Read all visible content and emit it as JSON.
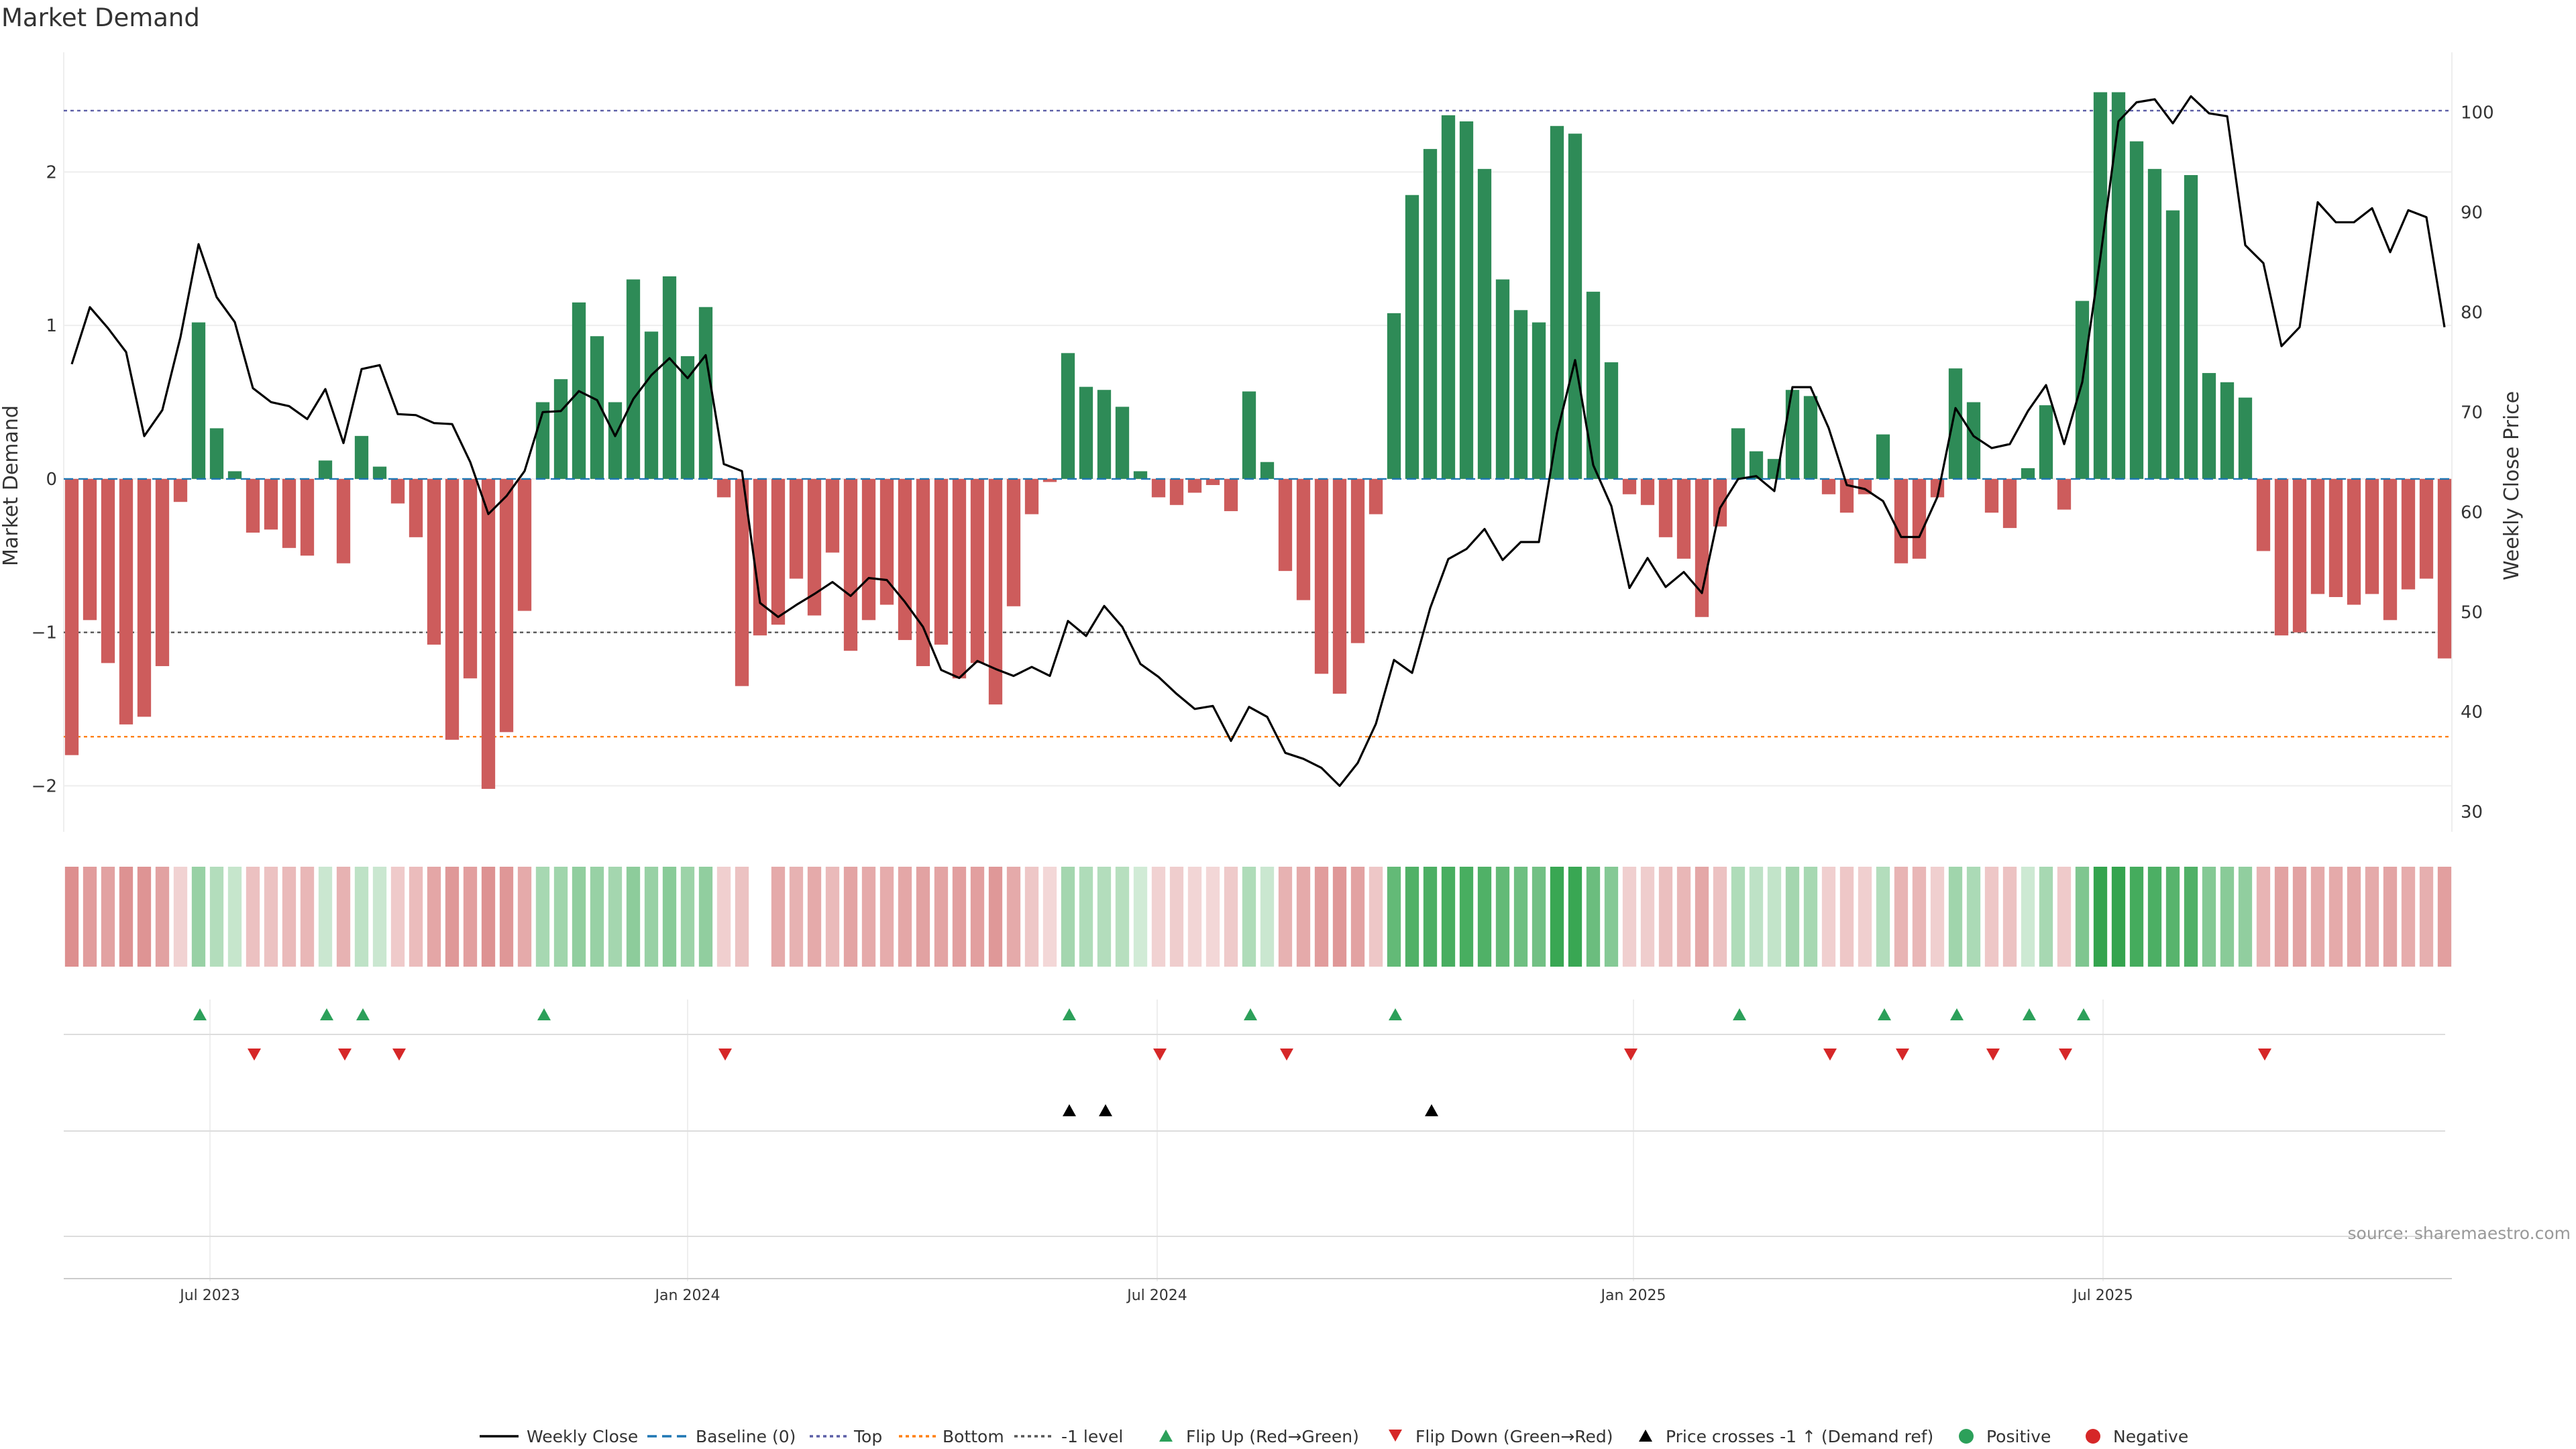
{
  "title": "Market Demand",
  "source": "source: sharemaestro.com",
  "colors": {
    "positive": "#2e8b57",
    "negative": "#cd5c5c",
    "flip_up": "#2ca05a",
    "flip_down": "#d62728",
    "price": "#000000",
    "baseline": "#1f77b4",
    "top": "#5b5ea6",
    "bottom": "#ff7f0e",
    "minus1": "#555555"
  },
  "chart_data": {
    "type": "bar",
    "title": "Market Demand",
    "ylabel": "Market Demand",
    "y2label": "Weekly Close Price",
    "ylim": [
      -2.3,
      2.78
    ],
    "y2lim": [
      28,
      106
    ],
    "yticks": [
      "2",
      "1",
      "0",
      "−1",
      "−2"
    ],
    "y2ticks": [
      "100",
      "90",
      "80",
      "70",
      "60",
      "50",
      "40",
      "30"
    ],
    "xticks": [
      "Jul 2023",
      "Jan 2024",
      "Jul 2024",
      "Jan 2025",
      "Jul 2025"
    ],
    "levels": {
      "top": 2.4,
      "bottom": -1.68,
      "minus1": -1.0,
      "baseline": 0
    },
    "series": [
      {
        "name": "Market Demand",
        "values": [
          -1.8,
          -0.92,
          -1.2,
          -1.6,
          -1.55,
          -1.22,
          -0.15,
          1.02,
          0.33,
          0.05,
          -0.35,
          -0.33,
          -0.45,
          -0.5,
          0.12,
          -0.55,
          0.28,
          0.08,
          -0.16,
          -0.38,
          -1.08,
          -1.7,
          -1.3,
          -2.02,
          -1.65,
          -0.86,
          0.5,
          0.65,
          1.15,
          0.93,
          0.5,
          1.3,
          0.96,
          1.32,
          0.8,
          1.12,
          -0.12,
          -1.35,
          -1.02,
          -0.95,
          -0.65,
          -0.89,
          -0.48,
          -1.12,
          -0.92,
          -0.82,
          -1.05,
          -1.22,
          -1.08,
          -1.3,
          -1.2,
          -1.47,
          -0.83,
          -0.23,
          -0.02,
          0.82,
          0.6,
          0.58,
          0.47,
          0.05,
          -0.12,
          -0.17,
          -0.09,
          -0.04,
          -0.21,
          0.57,
          0.11,
          -0.6,
          -0.79,
          -1.27,
          -1.4,
          -1.07,
          -0.23,
          1.08,
          1.85,
          2.15,
          2.37,
          2.33,
          2.02,
          1.3,
          1.1,
          1.02,
          2.3,
          2.25,
          1.22,
          0.76,
          -0.1,
          -0.17,
          -0.38,
          -0.52,
          -0.9,
          -0.31,
          0.33,
          0.18,
          0.13,
          0.58,
          0.54,
          -0.1,
          -0.22,
          -0.1,
          0.29,
          -0.55,
          -0.52,
          -0.12,
          0.72,
          0.5,
          -0.22,
          -0.32,
          0.07,
          0.48,
          -0.2,
          1.16,
          2.52,
          2.52,
          2.2,
          2.02,
          1.75,
          1.98,
          0.69,
          0.63,
          0.53,
          -0.47,
          -1.02,
          -1.0,
          -0.75,
          -0.77,
          -0.82,
          -0.75,
          -0.92,
          -0.72,
          -0.65,
          -1.17
        ]
      },
      {
        "name": "Weekly Close",
        "values": [
          74.8,
          80.5,
          78.4,
          76.0,
          67.6,
          70.2,
          77.5,
          86.8,
          81.5,
          79.0,
          72.4,
          71.0,
          70.6,
          69.3,
          72.3,
          66.9,
          74.3,
          74.7,
          69.8,
          69.7,
          68.9,
          68.8,
          65.0,
          59.8,
          61.6,
          64.1,
          70.0,
          70.1,
          72.1,
          71.2,
          67.6,
          71.3,
          73.7,
          75.4,
          73.4,
          75.7,
          64.8,
          64.1,
          50.9,
          49.5,
          50.7,
          51.8,
          53.0,
          51.6,
          53.4,
          53.2,
          51.0,
          48.5,
          44.2,
          43.4,
          45.1,
          44.3,
          43.6,
          44.5,
          43.6,
          49.1,
          47.6,
          50.6,
          48.5,
          44.8,
          43.5,
          41.8,
          40.3,
          40.6,
          37.1,
          40.5,
          39.5,
          35.9,
          35.3,
          34.4,
          32.6,
          34.9,
          38.8,
          45.2,
          43.9,
          50.4,
          55.3,
          56.3,
          58.3,
          55.2,
          57.0,
          57.0,
          67.9,
          75.2,
          64.7,
          60.6,
          52.4,
          55.4,
          52.5,
          54.0,
          51.9,
          60.4,
          63.3,
          63.6,
          62.1,
          72.5,
          72.5,
          68.4,
          62.7,
          62.3,
          61.1,
          57.5,
          57.5,
          61.5,
          70.4,
          67.6,
          66.4,
          66.8,
          70.1,
          72.7,
          66.8,
          73.0,
          85.5,
          99.1,
          101.0,
          101.3,
          98.9,
          101.6,
          99.9,
          99.6,
          86.7,
          84.9,
          76.6,
          78.5,
          91.0,
          89.0,
          89.0,
          90.4,
          86.0,
          90.2,
          89.5,
          78.5
        ]
      }
    ],
    "heat_strip": {
      "values": [
        -0.62,
        -0.52,
        -0.48,
        -0.6,
        -0.58,
        -0.48,
        -0.12,
        0.42,
        0.28,
        0.18,
        -0.25,
        -0.24,
        -0.3,
        -0.32,
        0.16,
        -0.36,
        0.22,
        0.16,
        -0.18,
        -0.28,
        -0.45,
        -0.55,
        -0.5,
        -0.6,
        -0.56,
        -0.42,
        0.34,
        0.38,
        0.46,
        0.42,
        0.36,
        0.48,
        0.42,
        0.5,
        0.4,
        0.46,
        -0.14,
        -0.24,
        null,
        -0.42,
        -0.36,
        -0.42,
        -0.3,
        -0.46,
        -0.42,
        -0.4,
        -0.44,
        -0.48,
        -0.46,
        -0.5,
        -0.5,
        -0.55,
        -0.42,
        -0.2,
        -0.08,
        0.36,
        0.3,
        0.28,
        0.26,
        0.12,
        -0.12,
        -0.16,
        -0.1,
        -0.08,
        -0.18,
        0.3,
        0.16,
        -0.36,
        -0.42,
        -0.52,
        -0.56,
        -0.48,
        -0.2,
        0.7,
        0.8,
        0.82,
        0.84,
        0.84,
        0.8,
        0.7,
        0.64,
        0.62,
        0.92,
        0.92,
        0.66,
        0.52,
        -0.14,
        -0.16,
        -0.26,
        -0.32,
        -0.44,
        -0.24,
        0.3,
        0.22,
        0.2,
        0.36,
        0.34,
        -0.14,
        -0.2,
        -0.14,
        0.28,
        -0.34,
        -0.32,
        -0.14,
        0.38,
        0.32,
        -0.2,
        -0.24,
        0.14,
        0.34,
        -0.18,
        0.55,
        0.95,
        0.95,
        0.86,
        0.82,
        0.76,
        0.8,
        0.52,
        0.5,
        0.46,
        -0.34,
        -0.48,
        -0.48,
        -0.42,
        -0.42,
        -0.44,
        -0.42,
        -0.46,
        -0.4,
        -0.38,
        -0.5
      ]
    },
    "flip_up_indices": [
      7,
      14,
      16,
      26,
      55,
      65,
      73,
      92,
      100,
      104,
      108,
      111
    ],
    "flip_down_indices": [
      10,
      15,
      18,
      36,
      60,
      67,
      86,
      97,
      101,
      106,
      110,
      121
    ],
    "price_cross_indices": [
      55,
      57,
      75
    ],
    "legend": [
      "Weekly Close",
      "Baseline (0)",
      "Top",
      "Bottom",
      "-1 level",
      "Flip Up (Red→Green)",
      "Flip Down (Green→Red)",
      "Price crosses -1 ↑ (Demand ref)",
      "Positive",
      "Negative"
    ]
  }
}
